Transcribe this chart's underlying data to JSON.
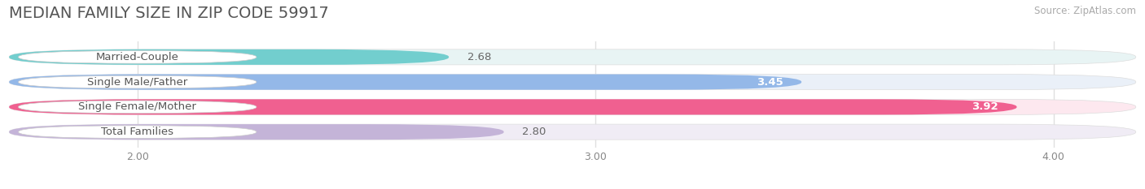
{
  "title": "MEDIAN FAMILY SIZE IN ZIP CODE 59917",
  "source": "Source: ZipAtlas.com",
  "categories": [
    "Married-Couple",
    "Single Male/Father",
    "Single Female/Mother",
    "Total Families"
  ],
  "values": [
    2.68,
    3.45,
    3.92,
    2.8
  ],
  "bar_colors": [
    "#72cece",
    "#94b8e8",
    "#f06090",
    "#c4b4d8"
  ],
  "bar_bg_colors": [
    "#e8f4f4",
    "#eaf0f8",
    "#fde8ef",
    "#f0ecf5"
  ],
  "label_colors": [
    "#333333",
    "#ffffff",
    "#ffffff",
    "#333333"
  ],
  "value_inside": [
    false,
    true,
    true,
    false
  ],
  "x_min": 1.72,
  "x_max": 4.18,
  "x_ticks": [
    2.0,
    3.0,
    4.0
  ],
  "x_tick_labels": [
    "2.00",
    "3.00",
    "4.00"
  ],
  "background_color": "#ffffff",
  "grid_color": "#e0e0e0",
  "title_fontsize": 14,
  "label_fontsize": 9.5,
  "value_fontsize": 9.5,
  "source_fontsize": 8.5,
  "bar_height": 0.62,
  "bar_gap": 0.38,
  "rounding": 0.3
}
